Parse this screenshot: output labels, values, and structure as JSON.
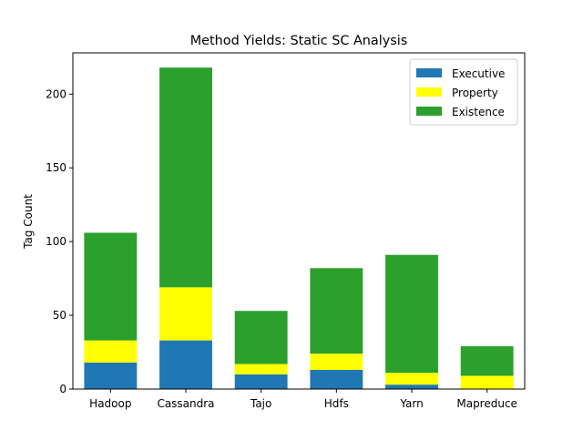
{
  "chart_data": {
    "type": "bar",
    "stacked": true,
    "title": "Method Yields: Static SC Analysis",
    "xlabel": "",
    "ylabel": "Tag Count",
    "categories": [
      "Hadoop",
      "Cassandra",
      "Tajo",
      "Hdfs",
      "Yarn",
      "Mapreduce"
    ],
    "series": [
      {
        "name": "Executive",
        "color": "#1f77b4",
        "values": [
          18,
          33,
          10,
          13,
          3,
          0
        ]
      },
      {
        "name": "Property",
        "color": "#ffff00",
        "values": [
          15,
          36,
          7,
          11,
          8,
          9
        ]
      },
      {
        "name": "Existence",
        "color": "#2ca02c",
        "values": [
          73,
          149,
          36,
          58,
          80,
          20
        ]
      }
    ],
    "ylim": [
      0,
      228
    ],
    "yticks": [
      0,
      50,
      100,
      150,
      200
    ],
    "grid": false,
    "legend_position": "top-right"
  }
}
